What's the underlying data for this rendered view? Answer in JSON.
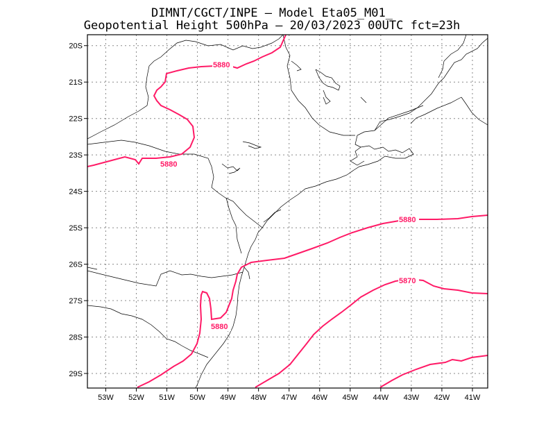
{
  "title": {
    "line1": "DIMNT/CGCT/INPE –  Model Eta05_M01_",
    "line2": "Geopotential Height 500hPa –  20/03/2023 00UTC fct=23h"
  },
  "colors": {
    "contour": "#ff1a66",
    "coast": "#000000",
    "grid": "#888888",
    "frame": "#000000"
  },
  "axes": {
    "lat_labels": [
      "20S",
      "21S",
      "22S",
      "23S",
      "24S",
      "25S",
      "26S",
      "27S",
      "28S",
      "29S"
    ],
    "lon_labels": [
      "53W",
      "52W",
      "51W",
      "50W",
      "49W",
      "48W",
      "47W",
      "46W",
      "45W",
      "44W",
      "43W",
      "42W",
      "41W"
    ],
    "lon_range": [
      -53.6,
      -40.5
    ],
    "lat_range": [
      -29.4,
      -19.7
    ]
  },
  "contours": [
    {
      "value_label": "5880",
      "labels": [
        "5880",
        "5880"
      ],
      "note_line": "north"
    },
    {
      "value_label": "5880",
      "labels": [
        "5880"
      ],
      "note_line": "southwest"
    },
    {
      "value_label": "5880",
      "labels": [
        "5880"
      ],
      "note_line": "east"
    },
    {
      "value_label": "5870",
      "labels": [
        "5870"
      ],
      "note_line": "southeast"
    }
  ],
  "contour_labels": {
    "c1": "5880",
    "c2": "5880",
    "c3": "5880",
    "c4": "5880",
    "c5": "5870"
  }
}
